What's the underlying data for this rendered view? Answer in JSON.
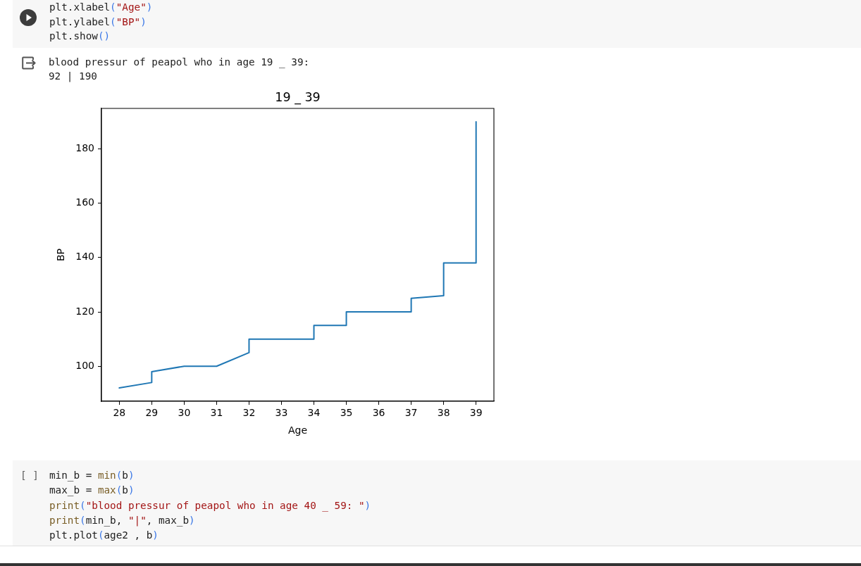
{
  "chart_data": {
    "type": "line",
    "title": "19 _ 39",
    "xlabel": "Age",
    "ylabel": "BP",
    "x": [
      28,
      29,
      29,
      30,
      31,
      32,
      32,
      34,
      34,
      35,
      35,
      37,
      37,
      38,
      38,
      39,
      39
    ],
    "series": [
      {
        "color": "#1f77b4",
        "values": [
          92,
          94,
          98,
          100,
          100,
          105,
          110,
          110,
          115,
          115,
          120,
          120,
          125,
          126,
          138,
          138,
          190
        ]
      }
    ],
    "xlim": [
      27.45,
      39.55
    ],
    "ylim": [
      87.1,
      194.9
    ],
    "xticks": [
      28,
      29,
      30,
      31,
      32,
      33,
      34,
      35,
      36,
      37,
      38,
      39
    ],
    "yticks": [
      100,
      120,
      140,
      160,
      180
    ],
    "grid": false,
    "legend": false,
    "annotations": [
      "plt.xlabel(\"Age\")",
      "plt.ylabel(\"BP\")",
      "plt.show()",
      "blood pressur of peapol who in age 19 _ 39:",
      "92 | 190",
      "[ ]",
      "min_b = min(b)",
      "max_b = max(b)",
      "print(\"blood pressur of peapol who in age 40 _ 59: \")",
      "print(min_b, \"|\", max_b)",
      "plt.plot(age2 , b)"
    ]
  }
}
